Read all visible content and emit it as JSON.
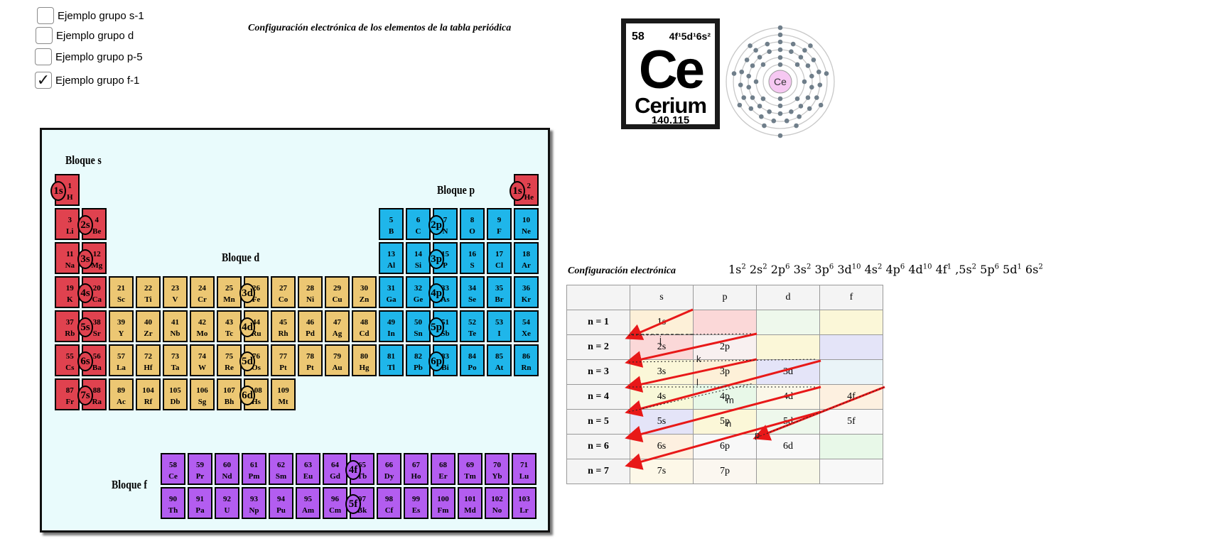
{
  "checkboxes": [
    {
      "label": "Ejemplo grupo s-1",
      "checked": false
    },
    {
      "label": "Ejemplo grupo d",
      "checked": false
    },
    {
      "label": "Ejemplo grupo p-5",
      "checked": false
    },
    {
      "label": "Ejemplo grupo f-1",
      "checked": true
    }
  ],
  "title": "Configuración electrónica de los elementos de la tabla periódica",
  "periodic_table": {
    "block_labels": {
      "s": "Bloque s",
      "p": "Bloque p",
      "d": "Bloque d",
      "f": "Bloque f"
    },
    "orbitals": [
      "1s",
      "1s",
      "2s",
      "3s",
      "4s",
      "5s",
      "6s",
      "7s",
      "2p",
      "3p",
      "4p",
      "5p",
      "6p",
      "3d",
      "4d",
      "5d",
      "6d",
      "4f",
      "5f"
    ],
    "main_rows": [
      [
        [
          "1",
          "H",
          "s"
        ],
        null,
        null,
        null,
        null,
        null,
        null,
        null,
        null,
        null,
        null,
        null,
        null,
        null,
        null,
        null,
        null,
        [
          "2",
          "He",
          "s"
        ]
      ],
      [
        [
          "3",
          "Li",
          "s"
        ],
        [
          "4",
          "Be",
          "s"
        ],
        null,
        null,
        null,
        null,
        null,
        null,
        null,
        null,
        null,
        null,
        [
          "5",
          "B",
          "p"
        ],
        [
          "6",
          "C",
          "p"
        ],
        [
          "7",
          "N",
          "p"
        ],
        [
          "8",
          "O",
          "p"
        ],
        [
          "9",
          "F",
          "p"
        ],
        [
          "10",
          "Ne",
          "p"
        ]
      ],
      [
        [
          "11",
          "Na",
          "s"
        ],
        [
          "12",
          "Mg",
          "s"
        ],
        null,
        null,
        null,
        null,
        null,
        null,
        null,
        null,
        null,
        null,
        [
          "13",
          "Al",
          "p"
        ],
        [
          "14",
          "Si",
          "p"
        ],
        [
          "15",
          "P",
          "p"
        ],
        [
          "16",
          "S",
          "p"
        ],
        [
          "17",
          "Cl",
          "p"
        ],
        [
          "18",
          "Ar",
          "p"
        ]
      ],
      [
        [
          "19",
          "K",
          "s"
        ],
        [
          "20",
          "Ca",
          "s"
        ],
        [
          "21",
          "Sc",
          "d"
        ],
        [
          "22",
          "Ti",
          "d"
        ],
        [
          "23",
          "V",
          "d"
        ],
        [
          "24",
          "Cr",
          "d"
        ],
        [
          "25",
          "Mn",
          "d"
        ],
        [
          "26",
          "Fe",
          "d"
        ],
        [
          "27",
          "Co",
          "d"
        ],
        [
          "28",
          "Ni",
          "d"
        ],
        [
          "29",
          "Cu",
          "d"
        ],
        [
          "30",
          "Zn",
          "d"
        ],
        [
          "31",
          "Ga",
          "p"
        ],
        [
          "32",
          "Ge",
          "p"
        ],
        [
          "33",
          "As",
          "p"
        ],
        [
          "34",
          "Se",
          "p"
        ],
        [
          "35",
          "Br",
          "p"
        ],
        [
          "36",
          "Kr",
          "p"
        ]
      ],
      [
        [
          "37",
          "Rb",
          "s"
        ],
        [
          "38",
          "Sr",
          "s"
        ],
        [
          "39",
          "Y",
          "d"
        ],
        [
          "40",
          "Zr",
          "d"
        ],
        [
          "41",
          "Nb",
          "d"
        ],
        [
          "42",
          "Mo",
          "d"
        ],
        [
          "43",
          "Tc",
          "d"
        ],
        [
          "44",
          "Ru",
          "d"
        ],
        [
          "45",
          "Rh",
          "d"
        ],
        [
          "46",
          "Pd",
          "d"
        ],
        [
          "47",
          "Ag",
          "d"
        ],
        [
          "48",
          "Cd",
          "d"
        ],
        [
          "49",
          "In",
          "p"
        ],
        [
          "50",
          "Sn",
          "p"
        ],
        [
          "51",
          "Sb",
          "p"
        ],
        [
          "52",
          "Te",
          "p"
        ],
        [
          "53",
          "I",
          "p"
        ],
        [
          "54",
          "Xe",
          "p"
        ]
      ],
      [
        [
          "55",
          "Cs",
          "s"
        ],
        [
          "56",
          "Ba",
          "s"
        ],
        [
          "57",
          "La",
          "d"
        ],
        [
          "72",
          "Hf",
          "d"
        ],
        [
          "73",
          "Ta",
          "d"
        ],
        [
          "74",
          "W",
          "d"
        ],
        [
          "75",
          "Re",
          "d"
        ],
        [
          "76",
          "Os",
          "d"
        ],
        [
          "77",
          "Pt",
          "d"
        ],
        [
          "78",
          "Pt",
          "d"
        ],
        [
          "79",
          "Au",
          "d"
        ],
        [
          "80",
          "Hg",
          "d"
        ],
        [
          "81",
          "Tl",
          "p"
        ],
        [
          "82",
          "Pb",
          "p"
        ],
        [
          "83",
          "Bi",
          "p"
        ],
        [
          "84",
          "Po",
          "p"
        ],
        [
          "85",
          "At",
          "p"
        ],
        [
          "86",
          "Rn",
          "p"
        ]
      ],
      [
        [
          "87",
          "Fr",
          "s"
        ],
        [
          "88",
          "Ra",
          "s"
        ],
        [
          "89",
          "Ac",
          "d"
        ],
        [
          "104",
          "Rf",
          "d"
        ],
        [
          "105",
          "Db",
          "d"
        ],
        [
          "106",
          "Sg",
          "d"
        ],
        [
          "107",
          "Bh",
          "d"
        ],
        [
          "108",
          "Hs",
          "d"
        ],
        [
          "109",
          "Mt",
          "d"
        ],
        null,
        null,
        null,
        null,
        null,
        null,
        null,
        null,
        null
      ]
    ],
    "f_rows": [
      [
        [
          "58",
          "Ce"
        ],
        [
          "59",
          "Pr"
        ],
        [
          "60",
          "Nd"
        ],
        [
          "61",
          "Pm"
        ],
        [
          "62",
          "Sm"
        ],
        [
          "63",
          "Eu"
        ],
        [
          "64",
          "Gd"
        ],
        [
          "65",
          "Tb"
        ],
        [
          "66",
          "Dy"
        ],
        [
          "67",
          "Ho"
        ],
        [
          "68",
          "Er"
        ],
        [
          "69",
          "Tm"
        ],
        [
          "70",
          "Yb"
        ],
        [
          "71",
          "Lu"
        ]
      ],
      [
        [
          "90",
          "Th"
        ],
        [
          "91",
          "Pa"
        ],
        [
          "92",
          "U"
        ],
        [
          "93",
          "Np"
        ],
        [
          "94",
          "Pu"
        ],
        [
          "95",
          "Am"
        ],
        [
          "96",
          "Cm"
        ],
        [
          "97",
          "Bk"
        ],
        [
          "98",
          "Cf"
        ],
        [
          "99",
          "Es"
        ],
        [
          "100",
          "Fm"
        ],
        [
          "101",
          "Md"
        ],
        [
          "102",
          "No"
        ],
        [
          "103",
          "Lr"
        ]
      ]
    ]
  },
  "element_card": {
    "atomic_number": "58",
    "config": "4f¹5d¹6s²",
    "symbol": "Ce",
    "name": "Cerium",
    "mass": "140.115",
    "shell_symbol": "Ce"
  },
  "config_label": "Configuración electrónica",
  "config_value": [
    [
      "1s",
      "2"
    ],
    [
      "2s",
      "2"
    ],
    [
      "2p",
      "6"
    ],
    [
      "3s",
      "2"
    ],
    [
      "3p",
      "6"
    ],
    [
      "3d",
      "10"
    ],
    [
      "4s",
      "2"
    ],
    [
      "4p",
      "6"
    ],
    [
      "4d",
      "10"
    ],
    [
      "4f",
      "1"
    ],
    [
      ",5s",
      "2"
    ],
    [
      "5p",
      "6"
    ],
    [
      "5d",
      "1"
    ],
    [
      "6s",
      "2"
    ]
  ],
  "orbital_table": {
    "headers": [
      "",
      "s",
      "p",
      "d",
      "f"
    ],
    "rows": [
      {
        "n": "n = 1",
        "cells": [
          "1s",
          "",
          "",
          ""
        ]
      },
      {
        "n": "n = 2",
        "cells": [
          "2s",
          "2p",
          "",
          ""
        ]
      },
      {
        "n": "n = 3",
        "cells": [
          "3s",
          "3p",
          "3d",
          ""
        ]
      },
      {
        "n": "n = 4",
        "cells": [
          "4s",
          "4p",
          "4d",
          "4f"
        ]
      },
      {
        "n": "n = 5",
        "cells": [
          "5s",
          "5p",
          "5d",
          "5f"
        ]
      },
      {
        "n": "n = 6",
        "cells": [
          "6s",
          "6p",
          "6d",
          ""
        ]
      },
      {
        "n": "n = 7",
        "cells": [
          "7s",
          "7p",
          "",
          ""
        ]
      }
    ],
    "cell_colors": [
      [
        "#fdf0d8",
        "#fbd8d8",
        "#eef8ec",
        "#fbf7d8"
      ],
      [
        "#fbd8d8",
        "#f8f0f0",
        "#fbf7d8",
        "#e4e4f8"
      ],
      [
        "#fbf7d8",
        "#fdf0d8",
        "#e4e4f8",
        "#eaf4f8"
      ],
      [
        "#f8f8d8",
        "#e8f8e8",
        "#fbf7e8",
        "#fdf0e0"
      ],
      [
        "#e4e4f8",
        "#fbf7d8",
        "#eef8ec",
        "#f8f8f8"
      ],
      [
        "#fdf0e0",
        "#f8f8f8",
        "#f8f8f8",
        "#e8f8e8"
      ],
      [
        "#fdf8e8",
        "#fbf7f0",
        "#f8f8e8",
        "#f8f8f8"
      ]
    ],
    "labels": [
      "j",
      "k",
      "l",
      "m",
      "n",
      "p"
    ]
  },
  "colors": {
    "s": "#e0424f",
    "p": "#1fb6ea",
    "d": "#ecc773",
    "f": "#b35df0",
    "arrow": "#e81818"
  }
}
